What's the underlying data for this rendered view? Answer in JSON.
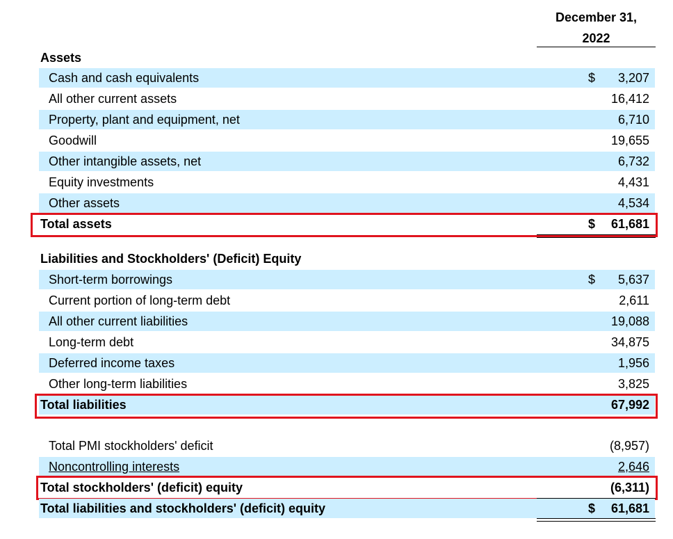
{
  "header": {
    "column_line1": "December 31,",
    "column_line2": "2022"
  },
  "assets": {
    "title": "Assets",
    "rows": [
      {
        "label": "Cash and cash equivalents",
        "dollar": "$",
        "value": "3,207"
      },
      {
        "label": "All other current assets",
        "dollar": "",
        "value": "16,412"
      },
      {
        "label": "Property, plant and equipment, net",
        "dollar": "",
        "value": "6,710"
      },
      {
        "label": "Goodwill",
        "dollar": "",
        "value": "19,655"
      },
      {
        "label": "Other intangible assets, net",
        "dollar": "",
        "value": "6,732"
      },
      {
        "label": "Equity investments",
        "dollar": "",
        "value": "4,431"
      },
      {
        "label": "Other assets",
        "dollar": "",
        "value": "4,534"
      }
    ],
    "total": {
      "label": "Total assets",
      "dollar": "$",
      "value": "61,681"
    }
  },
  "liabilities": {
    "title": "Liabilities and Stockholders' (Deficit) Equity",
    "rows": [
      {
        "label": "Short-term borrowings",
        "dollar": "$",
        "value": "5,637"
      },
      {
        "label": "Current portion of long-term debt",
        "dollar": "",
        "value": "2,611"
      },
      {
        "label": "All other current liabilities",
        "dollar": "",
        "value": "19,088"
      },
      {
        "label": "Long-term debt",
        "dollar": "",
        "value": "34,875"
      },
      {
        "label": "Deferred income taxes",
        "dollar": "",
        "value": "1,956"
      },
      {
        "label": "Other long-term liabilities",
        "dollar": "",
        "value": "3,825"
      }
    ],
    "total": {
      "label": "Total liabilities",
      "dollar": "",
      "value": "67,992"
    }
  },
  "equity": {
    "rows": [
      {
        "label": "Total PMI stockholders' deficit",
        "dollar": "",
        "value": "(8,957)"
      },
      {
        "label": "Noncontrolling interests",
        "dollar": "",
        "value": "2,646"
      }
    ],
    "total": {
      "label": "Total stockholders' (deficit) equity",
      "dollar": "",
      "value": "(6,311)"
    },
    "grand_total": {
      "label": "Total liabilities and stockholders' (deficit) equity",
      "dollar": "$",
      "value": "61,681"
    }
  },
  "colors": {
    "row_shade": "#cceeff",
    "highlight_border": "#e0141e"
  }
}
